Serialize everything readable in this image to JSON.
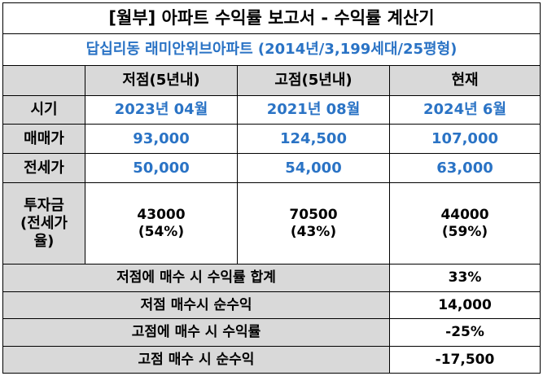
{
  "title": "[월부] 아파트 수익률 보고서 - 수익률 계산기",
  "subtitle": "답십리동 래미안위브아파트 (2014년/3,199세대/25평형)",
  "columns": [
    "저점(5년내)",
    "고점(5년내)",
    "현재"
  ],
  "rows": {
    "period": {
      "label": "시기",
      "values": [
        "2023년 04월",
        "2021년 08월",
        "2024년 6월"
      ]
    },
    "sale_price": {
      "label": "매매가",
      "values": [
        "93,000",
        "124,500",
        "107,000"
      ]
    },
    "jeonse_price": {
      "label": "전세가",
      "values": [
        "50,000",
        "54,000",
        "63,000"
      ]
    },
    "investment": {
      "label_lines": [
        "투자금",
        "(전세가",
        "율)"
      ],
      "values": [
        {
          "amount": "43000",
          "ratio": "(54%)"
        },
        {
          "amount": "70500",
          "ratio": "(43%)"
        },
        {
          "amount": "44000",
          "ratio": "(59%)"
        }
      ]
    }
  },
  "summary": [
    {
      "label": "저점에 매수 시 수익률 합계",
      "value": "33%"
    },
    {
      "label": "저점 매수시 순수익",
      "value": "14,000"
    },
    {
      "label": "고점에 매수 시 수익률",
      "value": "-25%"
    },
    {
      "label": "고점 매수 시 순수익",
      "value": "-17,500"
    }
  ]
}
